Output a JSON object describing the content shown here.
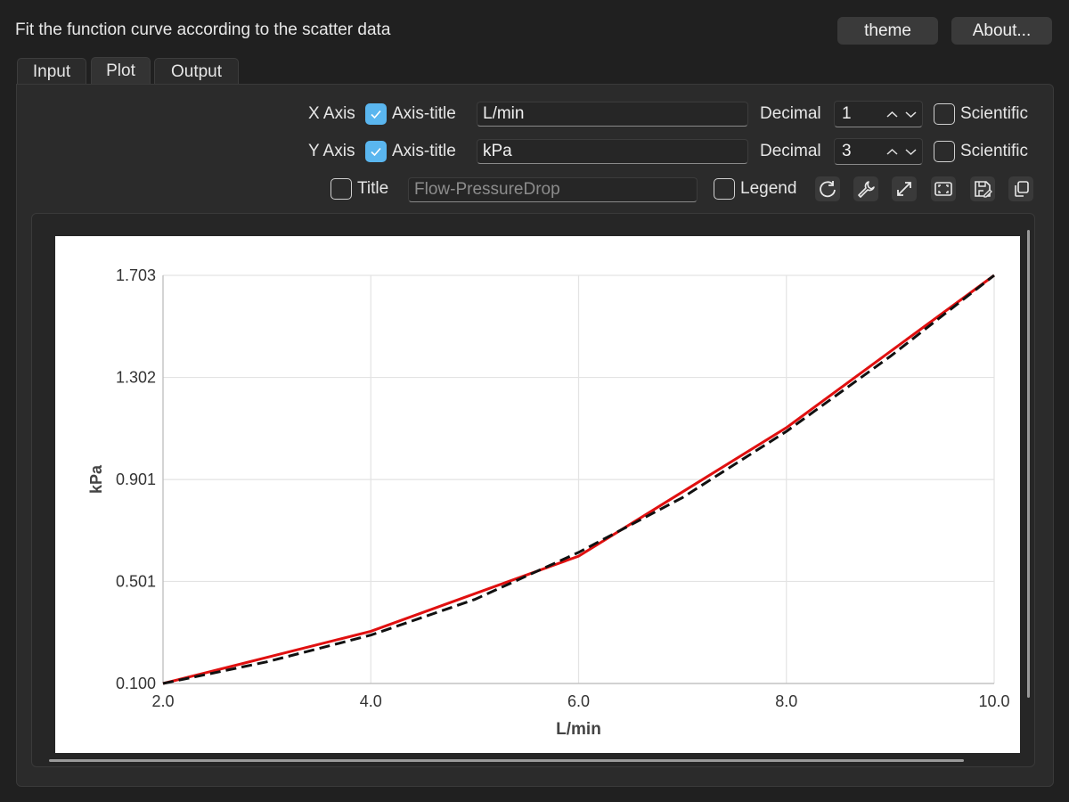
{
  "app": {
    "title": "Fit the function curve according to the scatter data",
    "theme_label": "theme",
    "about_label": "About..."
  },
  "tabs": [
    {
      "label": "Input",
      "active": false
    },
    {
      "label": "Plot",
      "active": true
    },
    {
      "label": "Output",
      "active": false
    }
  ],
  "controls": {
    "x_axis": {
      "label": "X Axis",
      "axis_title_checked": true,
      "axis_title_label": "Axis-title",
      "axis_title_value": "L/min",
      "decimal_label": "Decimal",
      "decimal_value": "1",
      "scientific_label": "Scientific",
      "scientific_checked": false
    },
    "y_axis": {
      "label": "Y Axis",
      "axis_title_checked": true,
      "axis_title_label": "Axis-title",
      "axis_title_value": "kPa",
      "decimal_label": "Decimal",
      "decimal_value": "3",
      "scientific_label": "Scientific",
      "scientific_checked": false
    },
    "title": {
      "label": "Title",
      "checked": false,
      "placeholder": "Flow-PressureDrop"
    },
    "legend": {
      "label": "Legend",
      "checked": false
    },
    "toolbar_icons": [
      "refresh-icon",
      "wrench-icon",
      "expand-icon",
      "fullscreen-icon",
      "save-icon",
      "copy-icon"
    ]
  },
  "colors": {
    "accent": "#5ab6ef",
    "data_series": "#e01010",
    "fit_series": "#111111"
  },
  "chart_data": {
    "type": "line",
    "title": "",
    "xlabel": "L/min",
    "ylabel": "kPa",
    "xlim": [
      2.0,
      10.0
    ],
    "ylim": [
      0.1,
      1.703
    ],
    "x_ticks": [
      "2.0",
      "4.0",
      "6.0",
      "8.0",
      "10.0"
    ],
    "y_ticks": [
      "0.100",
      "0.501",
      "0.901",
      "1.302",
      "1.703"
    ],
    "grid": true,
    "legend": false,
    "series": [
      {
        "style": "solid",
        "color": "#e01010",
        "x": [
          2.0,
          4.0,
          6.0,
          8.0,
          10.0
        ],
        "y": [
          0.1,
          0.305,
          0.6,
          1.105,
          1.703
        ]
      },
      {
        "style": "dashed",
        "color": "#111111",
        "x": [
          2.0,
          3.0,
          4.0,
          5.0,
          6.0,
          7.0,
          8.0,
          9.0,
          10.0
        ],
        "y": [
          0.1,
          0.185,
          0.29,
          0.43,
          0.615,
          0.83,
          1.09,
          1.385,
          1.703
        ]
      }
    ]
  }
}
